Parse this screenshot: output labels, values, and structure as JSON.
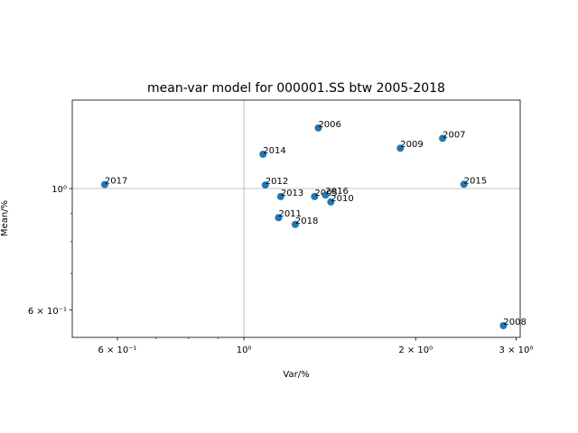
{
  "chart_data": {
    "type": "scatter",
    "title": "mean-var model for 000001.SS btw 2005-2018",
    "xlabel": "Var/%",
    "ylabel": "Mean/%",
    "xscale": "log",
    "yscale": "log",
    "xlim": [
      0.5,
      3.05
    ],
    "ylim": [
      0.535,
      1.45
    ],
    "grid": true,
    "marker_color": "#1f77b4",
    "x_ticks": [
      {
        "value": 0.6,
        "label": "6 × 10⁻¹"
      },
      {
        "value": 1.0,
        "label": "10⁰"
      },
      {
        "value": 2.0,
        "label": "2 × 10⁰"
      },
      {
        "value": 3.0,
        "label": "3 × 10⁰"
      }
    ],
    "y_ticks": [
      {
        "value": 0.6,
        "label": "6 × 10⁻¹"
      },
      {
        "value": 1.0,
        "label": "10⁰"
      }
    ],
    "points": [
      {
        "label": "2005",
        "x": 1.33,
        "y": 0.967
      },
      {
        "label": "2006",
        "x": 1.35,
        "y": 1.29
      },
      {
        "label": "2007",
        "x": 2.23,
        "y": 1.235
      },
      {
        "label": "2008",
        "x": 2.85,
        "y": 0.562
      },
      {
        "label": "2009",
        "x": 1.88,
        "y": 1.185
      },
      {
        "label": "2010",
        "x": 1.42,
        "y": 0.945
      },
      {
        "label": "2011",
        "x": 1.15,
        "y": 0.885
      },
      {
        "label": "2012",
        "x": 1.09,
        "y": 1.015
      },
      {
        "label": "2013",
        "x": 1.16,
        "y": 0.967
      },
      {
        "label": "2014",
        "x": 1.08,
        "y": 1.155
      },
      {
        "label": "2015",
        "x": 2.43,
        "y": 1.018
      },
      {
        "label": "2016",
        "x": 1.39,
        "y": 0.973
      },
      {
        "label": "2017",
        "x": 0.57,
        "y": 1.017
      },
      {
        "label": "2018",
        "x": 1.23,
        "y": 0.86
      }
    ]
  }
}
